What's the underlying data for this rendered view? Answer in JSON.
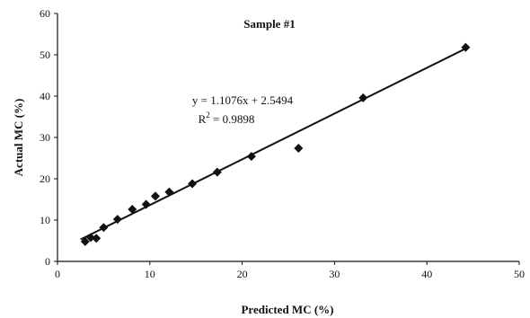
{
  "chart_data": {
    "type": "scatter",
    "title": "Sample #1",
    "xlabel": "Predicted MC (%)",
    "ylabel": "Actual MC (%)",
    "xlim": [
      0,
      50
    ],
    "ylim": [
      0,
      60
    ],
    "x_ticks": [
      "0",
      "10",
      "20",
      "30",
      "40",
      "50"
    ],
    "y_ticks": [
      "0",
      "10",
      "20",
      "30",
      "40",
      "50",
      "60"
    ],
    "grid": false,
    "legend": "none",
    "points": [
      {
        "x": 3.0,
        "y": 4.8
      },
      {
        "x": 3.6,
        "y": 5.8
      },
      {
        "x": 4.2,
        "y": 5.6
      },
      {
        "x": 5.0,
        "y": 8.2
      },
      {
        "x": 6.5,
        "y": 10.2
      },
      {
        "x": 8.1,
        "y": 12.6
      },
      {
        "x": 9.6,
        "y": 13.8
      },
      {
        "x": 10.6,
        "y": 15.8
      },
      {
        "x": 12.1,
        "y": 16.8
      },
      {
        "x": 14.6,
        "y": 18.8
      },
      {
        "x": 17.3,
        "y": 21.6
      },
      {
        "x": 21.0,
        "y": 25.4
      },
      {
        "x": 26.1,
        "y": 27.4
      },
      {
        "x": 33.1,
        "y": 39.6
      },
      {
        "x": 44.2,
        "y": 51.8
      }
    ],
    "trendline": {
      "slope": 1.1076,
      "intercept": 2.5494,
      "x_start": 2.5,
      "x_end": 44.2
    },
    "annotations": {
      "equation": "y = 1.1076x + 2.5494",
      "r2_prefix": "R",
      "r2_sup": "2",
      "r2_suffix": " = 0.9898"
    },
    "colors": {
      "marker": "#111111",
      "line": "#111111",
      "axis": "#111111"
    }
  }
}
